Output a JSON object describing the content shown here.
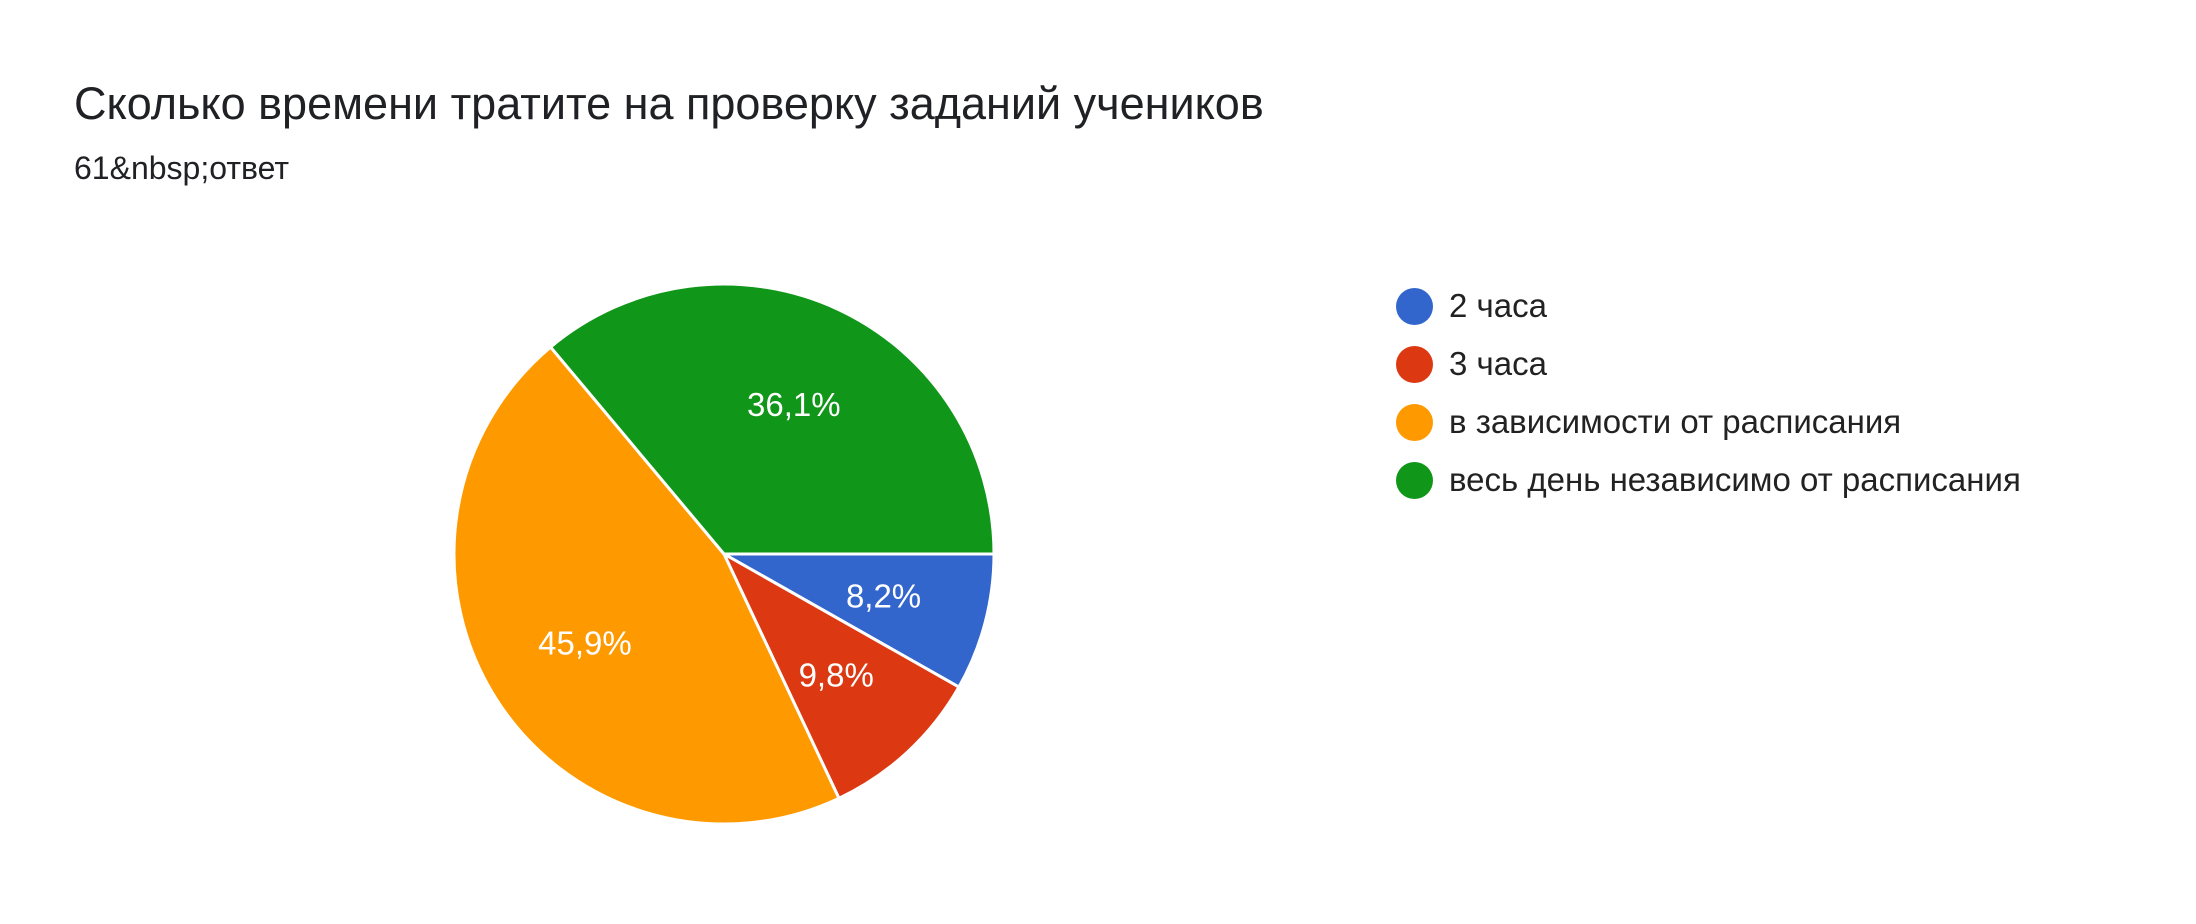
{
  "header": {
    "title": "Сколько времени тратите на проверку заданий учеников",
    "subtitle": "61&nbsp;ответ"
  },
  "chart_data": {
    "type": "pie",
    "title": "Сколько времени тратите на проверку заданий учеников",
    "categories": [
      "2 часа",
      "3 часа",
      "в зависимости от расписания",
      "весь день независимо от расписания"
    ],
    "values": [
      8.2,
      9.8,
      45.9,
      36.1
    ],
    "labels": [
      "8,2%",
      "9,8%",
      "45,9%",
      "36,1%"
    ],
    "colors": [
      "#3366cc",
      "#dc3912",
      "#ff9900",
      "#109618"
    ],
    "legend_position": "right",
    "start_angle": "3 o'clock",
    "direction": "clockwise"
  },
  "legend": {
    "items": [
      {
        "label": "2 часа",
        "color": "#3366cc"
      },
      {
        "label": "3 часа",
        "color": "#dc3912"
      },
      {
        "label": "в зависимости от расписания",
        "color": "#ff9900"
      },
      {
        "label": "весь день независимо от расписания",
        "color": "#109618"
      }
    ]
  }
}
